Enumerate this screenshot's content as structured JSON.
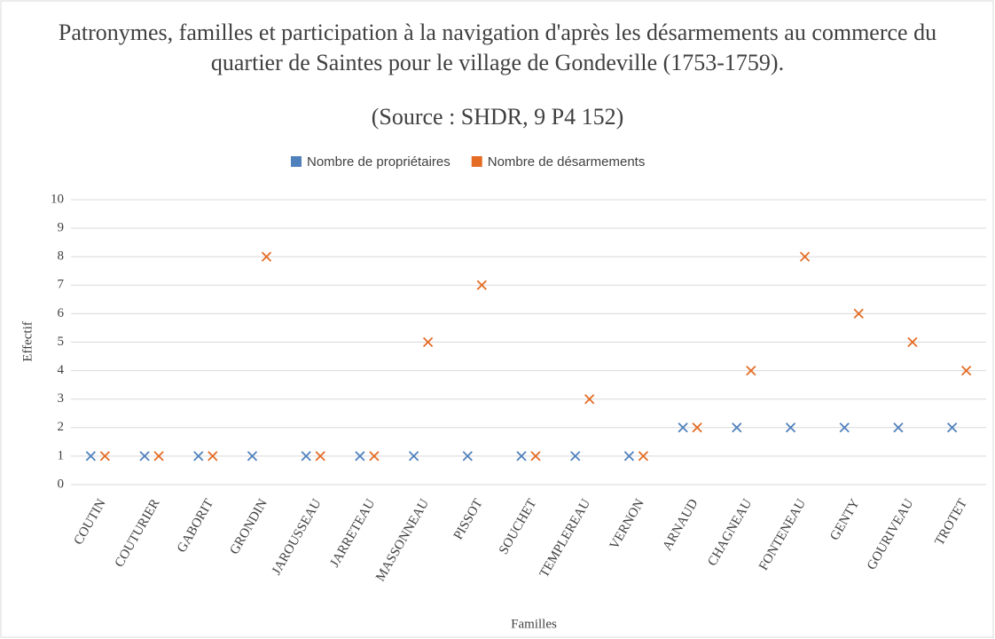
{
  "chart_data": {
    "type": "scatter",
    "title": "Patronymes, familles et participation à la navigation d'après les désarmements au commerce du quartier de Saintes pour le village de Gondeville (1753-1759).",
    "subtitle": "(Source : SHDR, 9 P4 152)",
    "xlabel": "Familles",
    "ylabel": "Effectif",
    "categories": [
      "COUTIN",
      "COUTURIER",
      "GABORIT",
      "GRONDIN",
      "JAROUSSEAU",
      "JARRETEAU",
      "MASSONNEAU",
      "PISSOT",
      "SOUCHET",
      "TEMPLEREAU",
      "VERNON",
      "ARNAUD",
      "CHAGNEAU",
      "FONTENEAU",
      "GENTY",
      "GOURIVEAU",
      "TROTET"
    ],
    "series": [
      {
        "name": "Nombre de propriétaires",
        "color": "#4f81bd",
        "values": [
          1,
          1,
          1,
          1,
          1,
          1,
          1,
          1,
          1,
          1,
          1,
          2,
          2,
          2,
          2,
          2,
          2
        ]
      },
      {
        "name": "Nombre de désarmements",
        "color": "#e46c24",
        "values": [
          1,
          1,
          1,
          8,
          1,
          1,
          5,
          7,
          1,
          3,
          1,
          2,
          4,
          8,
          6,
          5,
          4
        ]
      }
    ],
    "ylim": [
      0,
      10
    ],
    "yticks": [
      0,
      1,
      2,
      3,
      4,
      5,
      6,
      7,
      8,
      9,
      10
    ],
    "grid": true,
    "legend": "top"
  }
}
